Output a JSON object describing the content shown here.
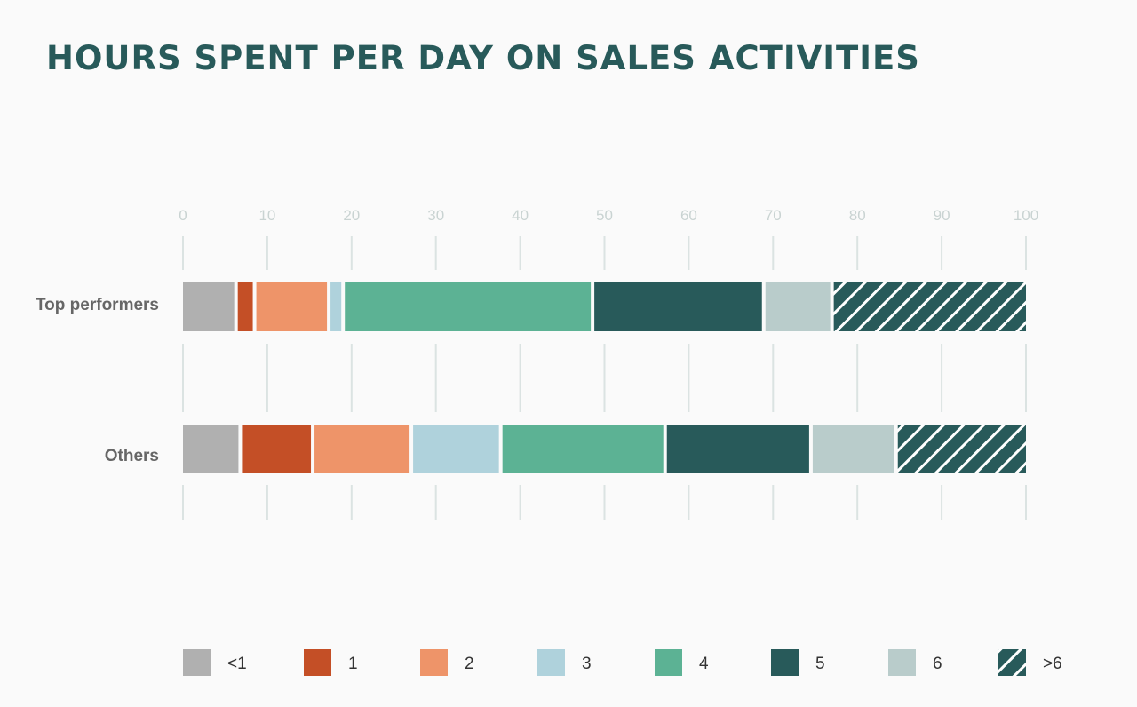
{
  "chart_data": {
    "type": "bar",
    "orientation": "horizontal",
    "stacked": true,
    "title": "HOURS SPENT PER DAY ON SALES ACTIVITIES",
    "xlim": [
      0,
      100
    ],
    "ticks": [
      "0",
      "10",
      "20",
      "30",
      "40",
      "50",
      "60",
      "70",
      "80",
      "90",
      "100"
    ],
    "categories": [
      "Top performers",
      "Others"
    ],
    "series": [
      {
        "name": "<1",
        "color": "#b0b0b0",
        "values": [
          6.5,
          7
        ]
      },
      {
        "name": "1",
        "color": "#c44f26",
        "values": [
          2.2,
          8.6
        ]
      },
      {
        "name": "2",
        "color": "#ee9469",
        "values": [
          8.8,
          11.7
        ]
      },
      {
        "name": "3",
        "color": "#afd2dc",
        "values": [
          1.7,
          10.6
        ]
      },
      {
        "name": "4",
        "color": "#5cb294",
        "values": [
          29.6,
          19.5
        ]
      },
      {
        "name": "5",
        "color": "#285a5a",
        "values": [
          20.3,
          17.3
        ]
      },
      {
        "name": "6",
        "color": "#b9cccb",
        "values": [
          8.1,
          10.1
        ]
      },
      {
        "name": ">6",
        "color": "#285a5a",
        "pattern": "hatched",
        "values": [
          22.8,
          15.2
        ]
      }
    ],
    "grid": true,
    "legend": "bottom"
  }
}
